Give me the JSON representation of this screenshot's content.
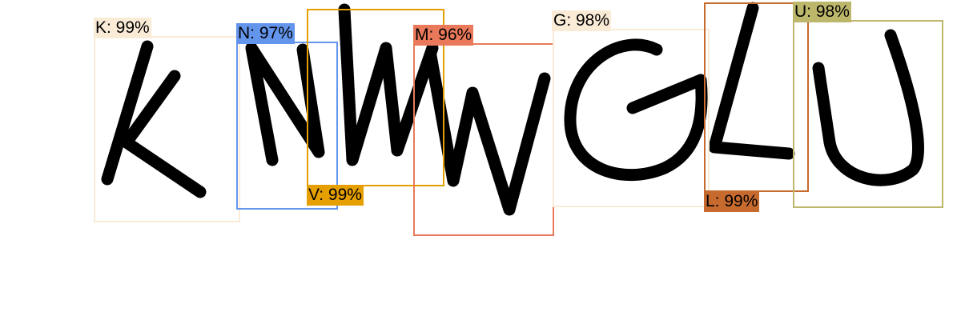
{
  "detections": [
    {
      "letter": "K",
      "confidence_percent": 99,
      "label": "K: 99%",
      "color": "#FAEBD7"
    },
    {
      "letter": "N",
      "confidence_percent": 97,
      "label": "N: 97%",
      "color": "#6495ED"
    },
    {
      "letter": "V",
      "confidence_percent": 99,
      "label": "V: 99%",
      "color": "#E69F00"
    },
    {
      "letter": "M",
      "confidence_percent": 96,
      "label": "M: 96%",
      "color": "#E9795A"
    },
    {
      "letter": "G",
      "confidence_percent": 98,
      "label": "G: 98%",
      "color": "#FAEBD7"
    },
    {
      "letter": "L",
      "confidence_percent": 99,
      "label": "L: 99%",
      "color": "#C76A2E"
    },
    {
      "letter": "U",
      "confidence_percent": 98,
      "label": "U: 98%",
      "color": "#BDB76B"
    }
  ]
}
